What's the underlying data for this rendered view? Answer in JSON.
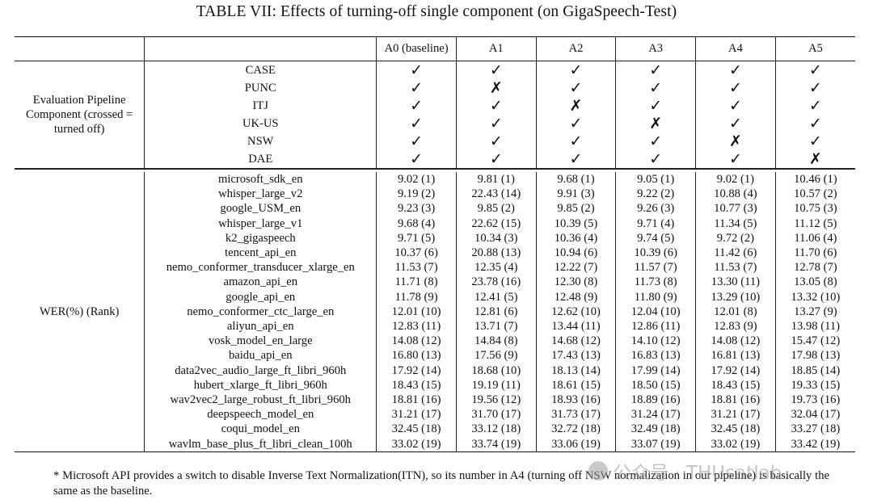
{
  "caption": "TABLE VII: Effects of turning-off single component (on GigaSpeech-Test)",
  "columns": [
    "A0 (baseline)",
    "A1",
    "A2",
    "A3",
    "A4",
    "A5"
  ],
  "component_section": {
    "label": "Evaluation Pipeline Component (crossed = turned off)",
    "rows": [
      {
        "name": "CASE",
        "marks": [
          "✓",
          "✓",
          "✓",
          "✓",
          "✓",
          "✓"
        ]
      },
      {
        "name": "PUNC",
        "marks": [
          "✓",
          "✗",
          "✓",
          "✓",
          "✓",
          "✓"
        ]
      },
      {
        "name": "ITJ",
        "marks": [
          "✓",
          "✓",
          "✗",
          "✓",
          "✓",
          "✓"
        ]
      },
      {
        "name": "UK-US",
        "marks": [
          "✓",
          "✓",
          "✓",
          "✗",
          "✓",
          "✓"
        ]
      },
      {
        "name": "NSW",
        "marks": [
          "✓",
          "✓",
          "✓",
          "✓",
          "✗",
          "✓"
        ]
      },
      {
        "name": "DAE",
        "marks": [
          "✓",
          "✓",
          "✓",
          "✓",
          "✓",
          "✗"
        ]
      }
    ]
  },
  "wer_section": {
    "label": "WER(%) (Rank)",
    "rows": [
      {
        "name": "microsoft_sdk_en",
        "values": [
          "9.02 (1)",
          "9.81 (1)",
          "9.68 (1)",
          "9.05 (1)",
          "9.02 (1)",
          "10.46 (1)"
        ]
      },
      {
        "name": "whisper_large_v2",
        "values": [
          "9.19 (2)",
          "22.43 (14)",
          "9.91 (3)",
          "9.22 (2)",
          "10.88 (4)",
          "10.57 (2)"
        ]
      },
      {
        "name": "google_USM_en",
        "values": [
          "9.23 (3)",
          "9.85 (2)",
          "9.85 (2)",
          "9.26 (3)",
          "10.77 (3)",
          "10.75 (3)"
        ]
      },
      {
        "name": "whisper_large_v1",
        "values": [
          "9.68 (4)",
          "22.62 (15)",
          "10.39 (5)",
          "9.71 (4)",
          "11.34 (5)",
          "11.12 (5)"
        ]
      },
      {
        "name": "k2_gigaspeech",
        "values": [
          "9.71 (5)",
          "10.34 (3)",
          "10.36 (4)",
          "9.74 (5)",
          "9.72 (2)",
          "11.06 (4)"
        ]
      },
      {
        "name": "tencent_api_en",
        "values": [
          "10.37 (6)",
          "20.88 (13)",
          "10.94 (6)",
          "10.39 (6)",
          "11.42 (6)",
          "11.70 (6)"
        ]
      },
      {
        "name": "nemo_conformer_transducer_xlarge_en",
        "values": [
          "11.53 (7)",
          "12.35 (4)",
          "12.22 (7)",
          "11.57 (7)",
          "11.53 (7)",
          "12.78 (7)"
        ]
      },
      {
        "name": "amazon_api_en",
        "values": [
          "11.71 (8)",
          "23.78 (16)",
          "12.30 (8)",
          "11.73 (8)",
          "13.30 (11)",
          "13.05 (8)"
        ]
      },
      {
        "name": "google_api_en",
        "values": [
          "11.78 (9)",
          "12.41 (5)",
          "12.48 (9)",
          "11.80 (9)",
          "13.29 (10)",
          "13.32 (10)"
        ]
      },
      {
        "name": "nemo_conformer_ctc_large_en",
        "values": [
          "12.01 (10)",
          "12.81 (6)",
          "12.62 (10)",
          "12.04 (10)",
          "12.01 (8)",
          "13.27 (9)"
        ]
      },
      {
        "name": "aliyun_api_en",
        "values": [
          "12.83 (11)",
          "13.71 (7)",
          "13.44 (11)",
          "12.86 (11)",
          "12.83 (9)",
          "13.98 (11)"
        ]
      },
      {
        "name": "vosk_model_en_large",
        "values": [
          "14.08 (12)",
          "14.84 (8)",
          "14.68 (12)",
          "14.10 (12)",
          "14.08 (12)",
          "15.47 (12)"
        ]
      },
      {
        "name": "baidu_api_en",
        "values": [
          "16.80 (13)",
          "17.56 (9)",
          "17.43 (13)",
          "16.83 (13)",
          "16.81 (13)",
          "17.98 (13)"
        ]
      },
      {
        "name": "data2vec_audio_large_ft_libri_960h",
        "values": [
          "17.92 (14)",
          "18.68 (10)",
          "18.13 (14)",
          "17.99 (14)",
          "17.92 (14)",
          "18.85 (14)"
        ]
      },
      {
        "name": "hubert_xlarge_ft_libri_960h",
        "values": [
          "18.43 (15)",
          "19.19 (11)",
          "18.61 (15)",
          "18.50 (15)",
          "18.43 (15)",
          "19.33 (15)"
        ]
      },
      {
        "name": "wav2vec2_large_robust_ft_libri_960h",
        "values": [
          "18.81 (16)",
          "19.56 (12)",
          "18.93 (16)",
          "18.89 (16)",
          "18.81 (16)",
          "19.73 (16)"
        ]
      },
      {
        "name": "deepspeech_model_en",
        "values": [
          "31.21 (17)",
          "31.70 (17)",
          "31.73 (17)",
          "31.24 (17)",
          "31.21 (17)",
          "32.04 (17)"
        ]
      },
      {
        "name": "coqui_model_en",
        "values": [
          "32.45 (18)",
          "33.12 (18)",
          "32.72 (18)",
          "32.49 (18)",
          "32.45 (18)",
          "33.27 (18)"
        ]
      },
      {
        "name": "wavlm_base_plus_ft_libri_clean_100h",
        "values": [
          "33.02 (19)",
          "33.74 (19)",
          "33.06 (19)",
          "33.07 (19)",
          "33.02 (19)",
          "33.42 (19)"
        ]
      }
    ]
  },
  "footnote": "* Microsoft API provides a switch to disable Inverse Text Normalization(ITN), so its number in A4 (turning off NSW normalization in our pipeline) is basically the same as the baseline.",
  "watermark": "公众号 · THUsatlab"
}
